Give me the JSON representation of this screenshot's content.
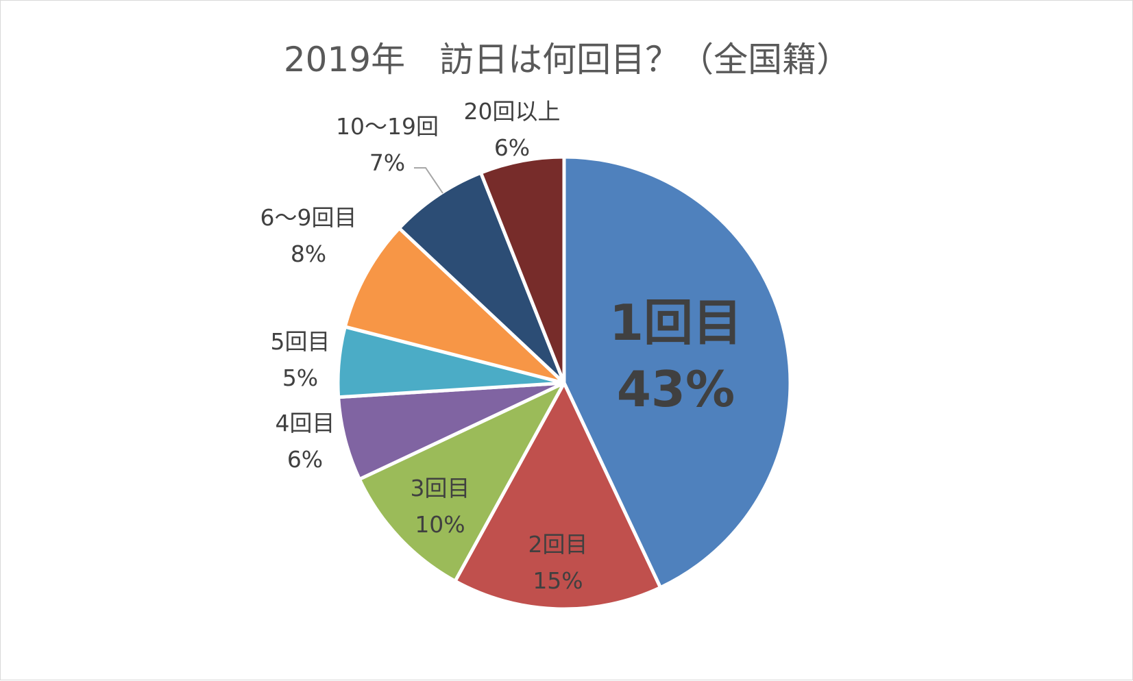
{
  "chart_data": {
    "type": "pie",
    "title": "2019年　訪日は何回目？（全国籍）",
    "start_angle_deg": 0,
    "direction": "clockwise",
    "slices": [
      {
        "label": "1回目",
        "value": 43,
        "value_text": "43%",
        "color": "#4f81bd",
        "emphasis": true
      },
      {
        "label": "2回目",
        "value": 15,
        "value_text": "15%",
        "color": "#c0504d"
      },
      {
        "label": "3回目",
        "value": 10,
        "value_text": "10%",
        "color": "#9bbb59"
      },
      {
        "label": "4回目",
        "value": 6,
        "value_text": "6%",
        "color": "#8064a2"
      },
      {
        "label": "5回目",
        "value": 5,
        "value_text": "5%",
        "color": "#4bacc6"
      },
      {
        "label": "6～9回目",
        "value": 8,
        "value_text": "8%",
        "color": "#f79646"
      },
      {
        "label": "10～19回",
        "value": 7,
        "value_text": "7%",
        "color": "#2c4d75",
        "leader_line": true
      },
      {
        "label": "20回以上",
        "value": 6,
        "value_text": "6%",
        "color": "#772c2a"
      }
    ],
    "legend": "none",
    "data_labels": "category and percentage"
  }
}
